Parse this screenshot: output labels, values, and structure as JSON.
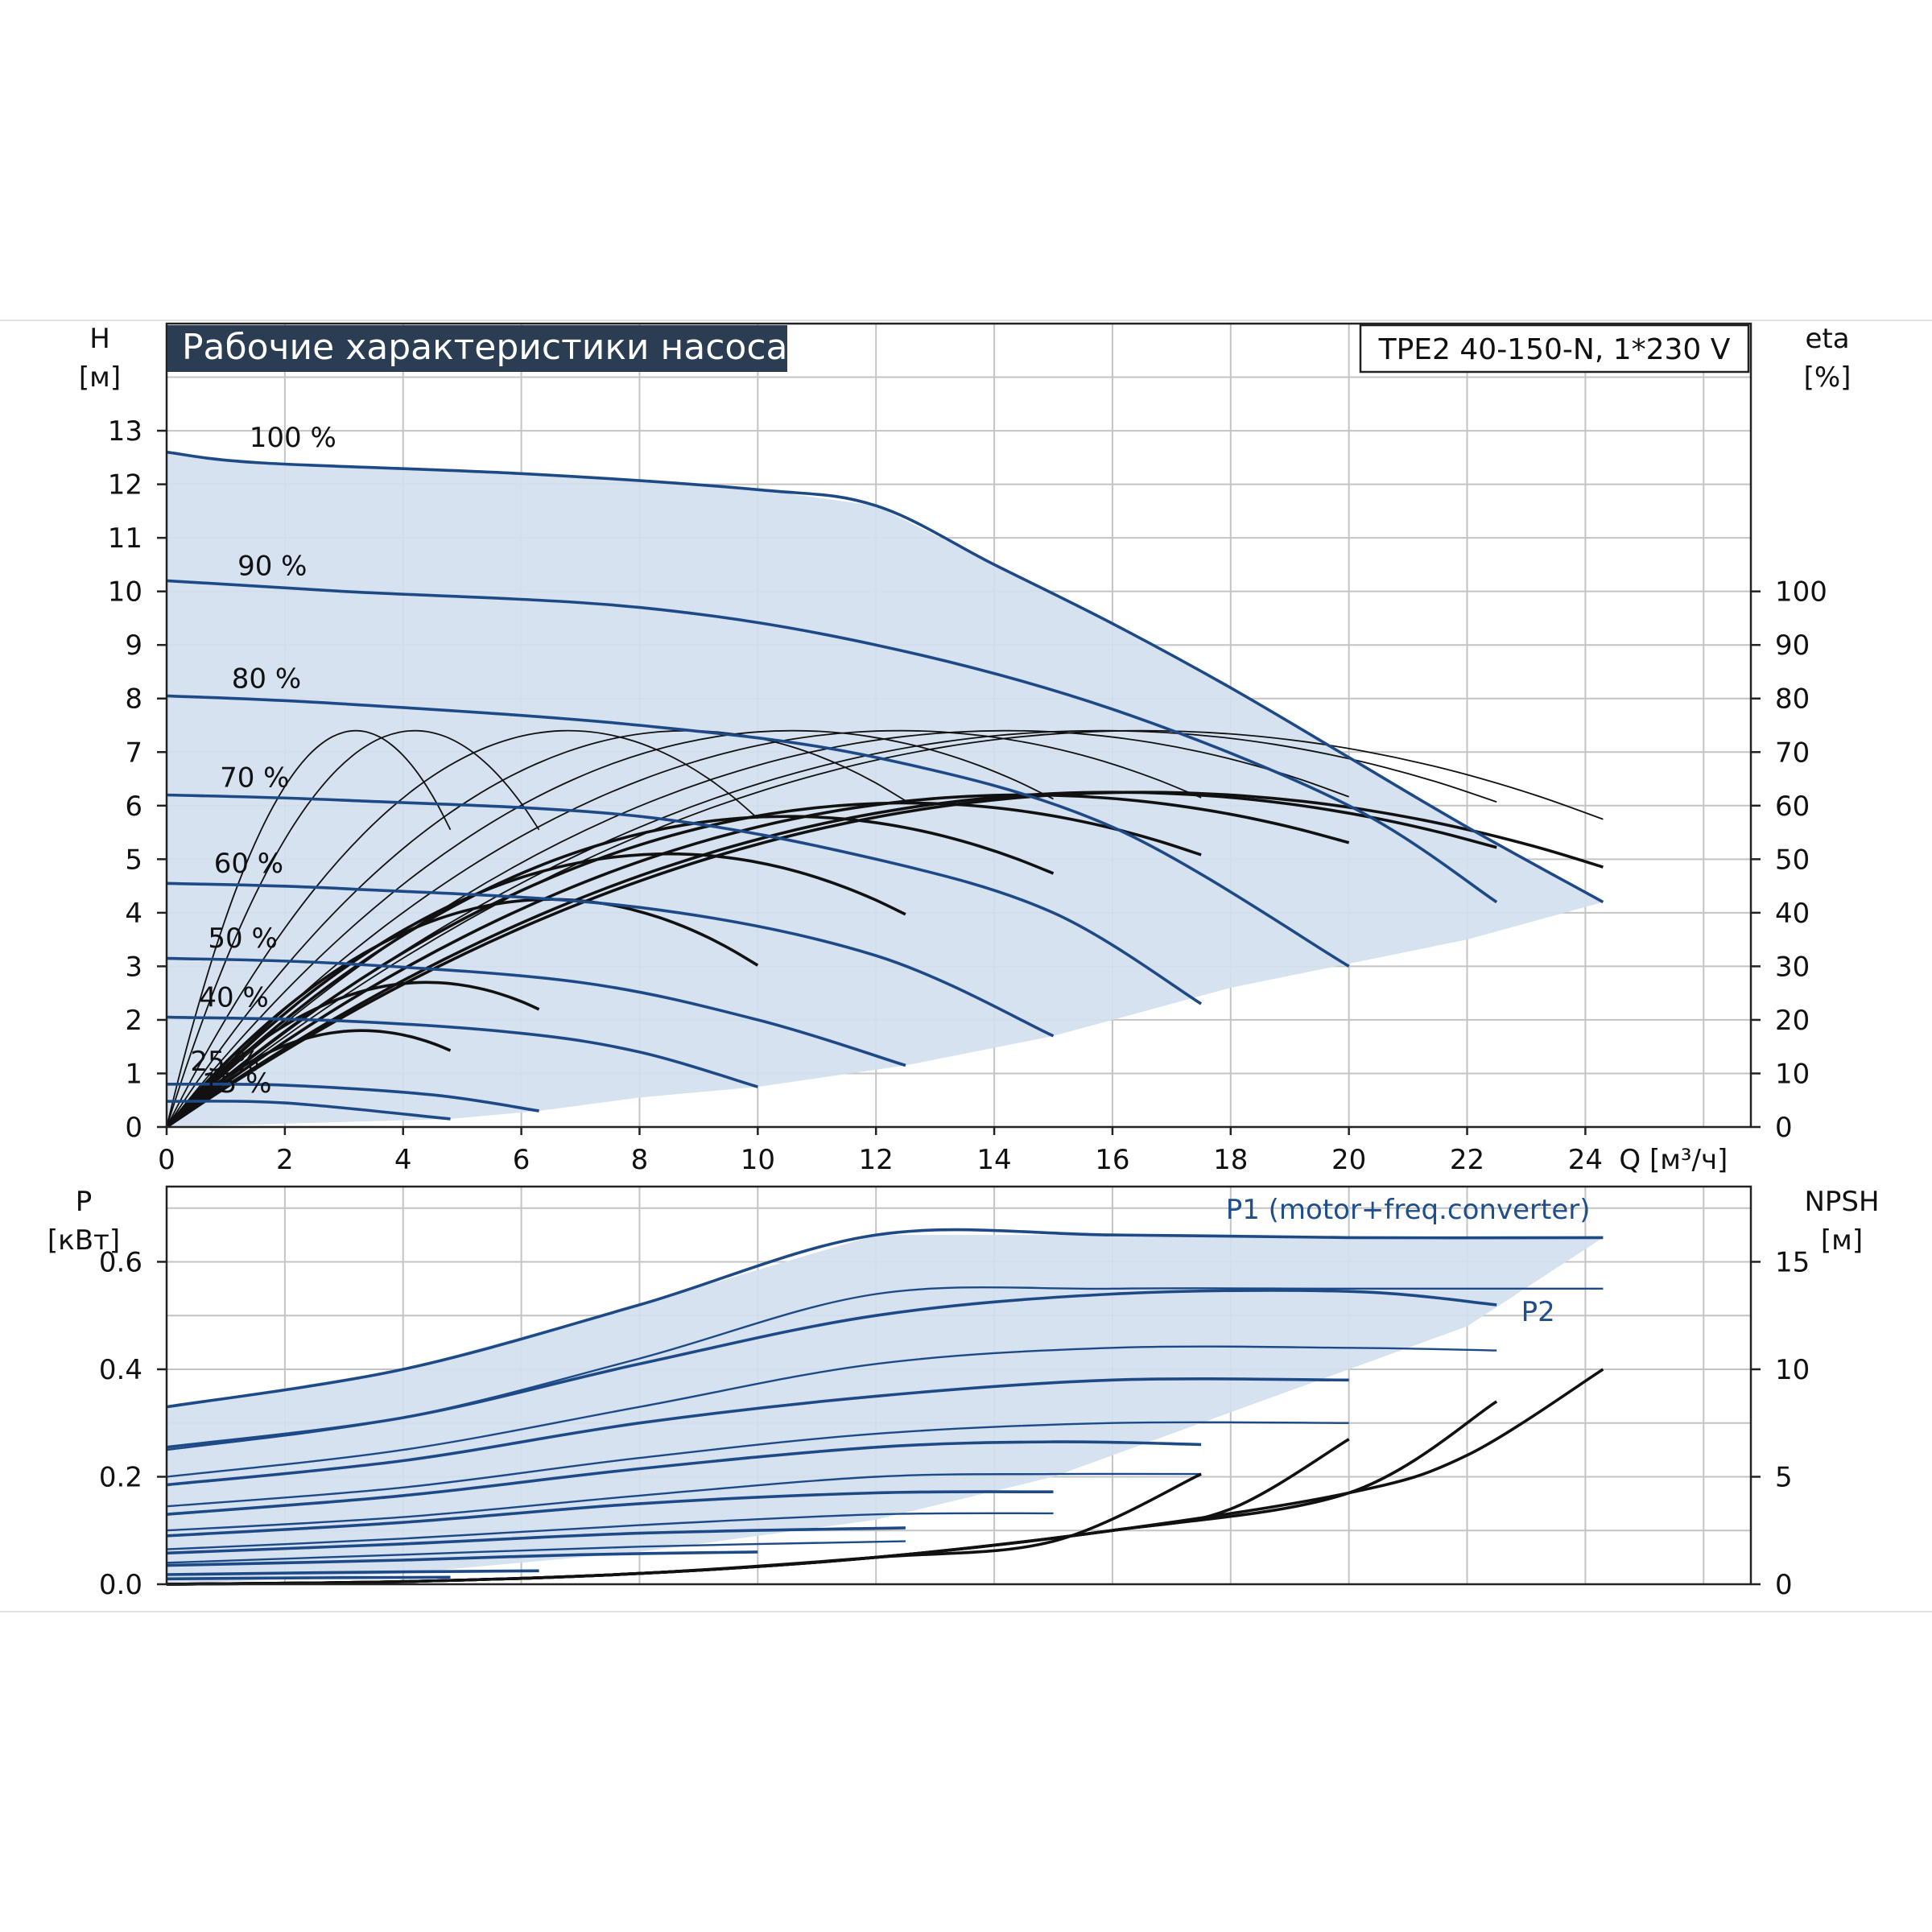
{
  "title": "Рабочие характеристики насоса",
  "model": "TPE2 40-150-N, 1*230 V",
  "colors": {
    "fill": "#d3e0ee",
    "curve_blue": "#1d4a86",
    "curve_black": "#111111",
    "title_bg": "#2b3d52"
  },
  "chart_data": [
    {
      "type": "line",
      "name": "head",
      "y_label_left": [
        "H",
        "[м]"
      ],
      "y_label_right": [
        "eta",
        "[%]"
      ],
      "x_label": "Q [м³/ч]",
      "xlim": [
        0,
        26.8
      ],
      "x_ticks": [
        0,
        2,
        4,
        6,
        8,
        10,
        12,
        14,
        16,
        18,
        20,
        22,
        24
      ],
      "ylim": [
        0,
        15.0
      ],
      "y_ticks_left": [
        0,
        1,
        2,
        3,
        4,
        5,
        6,
        7,
        8,
        9,
        10,
        11,
        12,
        13
      ],
      "y_ticks_right": [
        0,
        10,
        20,
        30,
        40,
        50,
        60,
        70,
        80,
        90,
        100
      ],
      "head_curves": [
        {
          "label": "100 %",
          "points": [
            [
              0,
              12.6
            ],
            [
              1.6,
              12.4
            ],
            [
              6,
              12.2
            ],
            [
              10,
              11.9
            ],
            [
              12,
              11.6
            ],
            [
              14,
              10.5
            ],
            [
              16,
              9.4
            ],
            [
              18,
              8.2
            ],
            [
              20,
              6.9
            ],
            [
              22,
              5.6
            ],
            [
              24.3,
              4.2
            ]
          ]
        },
        {
          "label": "90 %",
          "points": [
            [
              0,
              10.2
            ],
            [
              3,
              10.0
            ],
            [
              8,
              9.7
            ],
            [
              12,
              9.0
            ],
            [
              16,
              7.8
            ],
            [
              20,
              6.0
            ],
            [
              22.5,
              4.2
            ]
          ]
        },
        {
          "label": "80 %",
          "points": [
            [
              0,
              8.05
            ],
            [
              3,
              7.9
            ],
            [
              8,
              7.5
            ],
            [
              12,
              6.9
            ],
            [
              16,
              5.6
            ],
            [
              20,
              3.0
            ]
          ]
        },
        {
          "label": "70 %",
          "points": [
            [
              0,
              6.2
            ],
            [
              3,
              6.1
            ],
            [
              8,
              5.8
            ],
            [
              12,
              5.0
            ],
            [
              15,
              4.0
            ],
            [
              17.5,
              2.3
            ]
          ]
        },
        {
          "label": "60 %",
          "points": [
            [
              0,
              4.55
            ],
            [
              3,
              4.45
            ],
            [
              8,
              4.1
            ],
            [
              12,
              3.2
            ],
            [
              15,
              1.7
            ]
          ]
        },
        {
          "label": "50 %",
          "points": [
            [
              0,
              3.15
            ],
            [
              3,
              3.05
            ],
            [
              7,
              2.7
            ],
            [
              10,
              2.0
            ],
            [
              12.5,
              1.15
            ]
          ]
        },
        {
          "label": "40 %",
          "points": [
            [
              0,
              2.05
            ],
            [
              3,
              1.98
            ],
            [
              6,
              1.75
            ],
            [
              8,
              1.4
            ],
            [
              10,
              0.75
            ]
          ]
        },
        {
          "label": "25 %",
          "points": [
            [
              0,
              0.8
            ],
            [
              2,
              0.78
            ],
            [
              4.5,
              0.6
            ],
            [
              6.3,
              0.3
            ]
          ]
        },
        {
          "label": "15 %",
          "points": [
            [
              0,
              0.48
            ],
            [
              2,
              0.45
            ],
            [
              4.8,
              0.15
            ]
          ]
        }
      ],
      "percent_labels": [
        {
          "text": "100 %",
          "at": [
            1.4,
            12.7
          ]
        },
        {
          "text": "90 %",
          "at": [
            1.2,
            10.3
          ]
        },
        {
          "text": "80 %",
          "at": [
            1.1,
            8.2
          ]
        },
        {
          "text": "70 %",
          "at": [
            0.9,
            6.35
          ]
        },
        {
          "text": "60 %",
          "at": [
            0.8,
            4.75
          ]
        },
        {
          "text": "50 %",
          "at": [
            0.7,
            3.35
          ]
        },
        {
          "text": "40 %",
          "at": [
            0.55,
            2.25
          ]
        },
        {
          "text": "25 %",
          "at": [
            0.4,
            1.05
          ]
        },
        {
          "text": "15 %",
          "at": [
            0.6,
            0.65
          ]
        }
      ],
      "eta_curves": [
        {
          "xmax": 4.8,
          "peak": [
            3.3,
            1.8
          ]
        },
        {
          "xmax": 6.3,
          "peak": [
            4.4,
            2.7
          ]
        },
        {
          "xmax": 10.0,
          "peak": [
            6.5,
            4.25
          ]
        },
        {
          "xmax": 12.5,
          "peak": [
            8.5,
            5.1
          ]
        },
        {
          "xmax": 15.0,
          "peak": [
            10.5,
            5.8
          ]
        },
        {
          "xmax": 17.5,
          "peak": [
            12.5,
            6.05
          ]
        },
        {
          "xmax": 20.0,
          "peak": [
            14.5,
            6.2
          ]
        },
        {
          "xmax": 22.5,
          "peak": [
            16.0,
            6.25
          ]
        },
        {
          "xmax": 24.3,
          "peak": [
            16.5,
            6.25
          ]
        }
      ],
      "eta_thin_curves": [
        {
          "xmax": 4.8,
          "peak": [
            3.2,
            7.4
          ]
        },
        {
          "xmax": 6.3,
          "peak": [
            4.2,
            7.4
          ]
        },
        {
          "xmax": 10.0,
          "peak": [
            6.8,
            7.4
          ]
        },
        {
          "xmax": 12.5,
          "peak": [
            8.8,
            7.4
          ]
        },
        {
          "xmax": 15.0,
          "peak": [
            10.6,
            7.4
          ]
        },
        {
          "xmax": 17.5,
          "peak": [
            12.4,
            7.4
          ]
        },
        {
          "xmax": 20.0,
          "peak": [
            14.2,
            7.4
          ]
        },
        {
          "xmax": 22.5,
          "peak": [
            15.8,
            7.4
          ]
        },
        {
          "xmax": 24.3,
          "peak": [
            16.5,
            7.4
          ]
        }
      ],
      "region_outline": [
        [
          0,
          12.6
        ],
        [
          1.6,
          12.4
        ],
        [
          6,
          12.2
        ],
        [
          10,
          11.9
        ],
        [
          12,
          11.6
        ],
        [
          14,
          10.5
        ],
        [
          16,
          9.4
        ],
        [
          18,
          8.2
        ],
        [
          20,
          6.9
        ],
        [
          22,
          5.6
        ],
        [
          24.3,
          4.2
        ],
        [
          22,
          3.5
        ],
        [
          18,
          2.6
        ],
        [
          15,
          1.7
        ],
        [
          12.5,
          1.15
        ],
        [
          10,
          0.75
        ],
        [
          8,
          0.55
        ],
        [
          6.3,
          0.3
        ],
        [
          4.8,
          0.15
        ],
        [
          0,
          0
        ]
      ]
    },
    {
      "type": "line",
      "name": "power",
      "y_label_left": [
        "P",
        "[кВт]"
      ],
      "y_label_right": [
        "NPSH",
        "[м]"
      ],
      "xlim": [
        0,
        26.8
      ],
      "ylim": [
        0,
        0.74
      ],
      "y_ticks_left": [
        "0.0",
        "0.2",
        "0.4",
        "0.6"
      ],
      "y_ticks_left_values": [
        0,
        0.2,
        0.4,
        0.6
      ],
      "y_ticks_right": [
        "0",
        "5",
        "10",
        "15"
      ],
      "y_ticks_right_values": [
        0,
        0.2,
        0.4,
        0.6
      ],
      "series_labels": [
        {
          "text": "P1 (motor+freq.converter)",
          "at": [
            21.0,
            0.68
          ]
        },
        {
          "text": "P2",
          "at": [
            23.2,
            0.49
          ]
        }
      ],
      "p1_curves": [
        {
          "points": [
            [
              0,
              0.33
            ],
            [
              4,
              0.4
            ],
            [
              8,
              0.52
            ],
            [
              12,
              0.65
            ],
            [
              16,
              0.65
            ],
            [
              20,
              0.645
            ],
            [
              24.3,
              0.645
            ]
          ]
        },
        {
          "points": [
            [
              0,
              0.255
            ],
            [
              4,
              0.31
            ],
            [
              8,
              0.41
            ],
            [
              12,
              0.5
            ],
            [
              16,
              0.54
            ],
            [
              20,
              0.545
            ],
            [
              22.5,
              0.52
            ]
          ]
        },
        {
          "points": [
            [
              0,
              0.185
            ],
            [
              4,
              0.23
            ],
            [
              8,
              0.3
            ],
            [
              12,
              0.35
            ],
            [
              16,
              0.38
            ],
            [
              20,
              0.38
            ]
          ]
        },
        {
          "points": [
            [
              0,
              0.13
            ],
            [
              4,
              0.165
            ],
            [
              8,
              0.215
            ],
            [
              12,
              0.255
            ],
            [
              15,
              0.265
            ],
            [
              17.5,
              0.26
            ]
          ]
        },
        {
          "points": [
            [
              0,
              0.09
            ],
            [
              4,
              0.115
            ],
            [
              8,
              0.15
            ],
            [
              12,
              0.17
            ],
            [
              15,
              0.172
            ]
          ]
        },
        {
          "points": [
            [
              0,
              0.058
            ],
            [
              4,
              0.075
            ],
            [
              8,
              0.095
            ],
            [
              12.5,
              0.105
            ]
          ]
        },
        {
          "points": [
            [
              0,
              0.035
            ],
            [
              4,
              0.045
            ],
            [
              7,
              0.055
            ],
            [
              10,
              0.06
            ]
          ]
        },
        {
          "points": [
            [
              0,
              0.018
            ],
            [
              3,
              0.022
            ],
            [
              6.3,
              0.025
            ]
          ]
        },
        {
          "points": [
            [
              0,
              0.01
            ],
            [
              2.5,
              0.012
            ],
            [
              4.8,
              0.013
            ]
          ]
        }
      ],
      "p2_curves": [
        {
          "points": [
            [
              0,
              0.25
            ],
            [
              4,
              0.31
            ],
            [
              8,
              0.42
            ],
            [
              12,
              0.54
            ],
            [
              16,
              0.55
            ],
            [
              20,
              0.55
            ],
            [
              24.3,
              0.55
            ]
          ]
        },
        {
          "points": [
            [
              0,
              0.2
            ],
            [
              4,
              0.25
            ],
            [
              8,
              0.33
            ],
            [
              12,
              0.41
            ],
            [
              16,
              0.44
            ],
            [
              20,
              0.44
            ],
            [
              22.5,
              0.435
            ]
          ]
        },
        {
          "points": [
            [
              0,
              0.145
            ],
            [
              4,
              0.18
            ],
            [
              8,
              0.235
            ],
            [
              12,
              0.28
            ],
            [
              16,
              0.3
            ],
            [
              20,
              0.3
            ]
          ]
        },
        {
          "points": [
            [
              0,
              0.1
            ],
            [
              4,
              0.125
            ],
            [
              8,
              0.165
            ],
            [
              12,
              0.2
            ],
            [
              15,
              0.205
            ],
            [
              17.5,
              0.205
            ]
          ]
        },
        {
          "points": [
            [
              0,
              0.065
            ],
            [
              4,
              0.085
            ],
            [
              8,
              0.11
            ],
            [
              12,
              0.13
            ],
            [
              15,
              0.132
            ]
          ]
        },
        {
          "points": [
            [
              0,
              0.04
            ],
            [
              4,
              0.055
            ],
            [
              8,
              0.07
            ],
            [
              12.5,
              0.08
            ]
          ]
        }
      ],
      "npsh_curves": [
        {
          "points": [
            [
              0,
              0.0
            ],
            [
              4,
              0.005
            ],
            [
              8,
              0.02
            ],
            [
              12,
              0.05
            ],
            [
              15,
              0.08
            ],
            [
              17.5,
              0.205
            ]
          ]
        },
        {
          "points": [
            [
              0,
              0.0
            ],
            [
              4,
              0.005
            ],
            [
              8,
              0.02
            ],
            [
              12,
              0.05
            ],
            [
              16,
              0.1
            ],
            [
              18,
              0.14
            ],
            [
              20,
              0.27
            ]
          ]
        },
        {
          "points": [
            [
              0,
              0.0
            ],
            [
              4,
              0.005
            ],
            [
              8,
              0.02
            ],
            [
              12,
              0.05
            ],
            [
              16,
              0.1
            ],
            [
              20,
              0.17
            ],
            [
              22.5,
              0.34
            ]
          ]
        },
        {
          "points": [
            [
              0,
              0.0
            ],
            [
              4,
              0.005
            ],
            [
              8,
              0.02
            ],
            [
              12,
              0.05
            ],
            [
              16,
              0.1
            ],
            [
              20,
              0.17
            ],
            [
              22,
              0.24
            ],
            [
              24.3,
              0.4
            ]
          ]
        }
      ],
      "region_outline": [
        [
          0,
          0.33
        ],
        [
          4,
          0.4
        ],
        [
          8,
          0.52
        ],
        [
          12,
          0.65
        ],
        [
          16,
          0.65
        ],
        [
          20,
          0.645
        ],
        [
          24.3,
          0.645
        ],
        [
          22,
          0.48
        ],
        [
          18,
          0.32
        ],
        [
          15,
          0.2
        ],
        [
          12,
          0.12
        ],
        [
          8,
          0.06
        ],
        [
          4,
          0.02
        ],
        [
          0,
          0.0
        ]
      ]
    }
  ]
}
